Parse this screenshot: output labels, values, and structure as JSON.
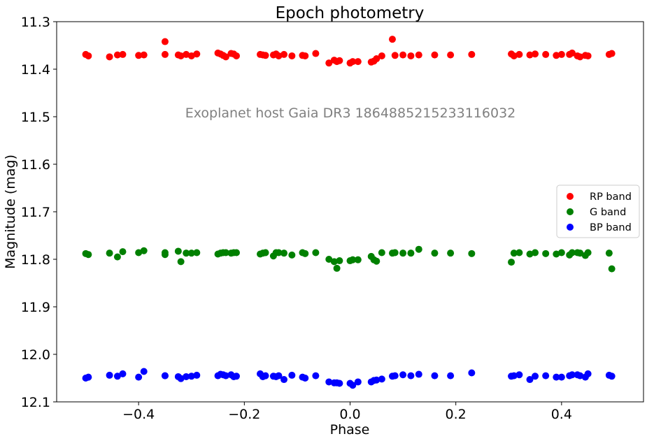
{
  "chart_data": {
    "type": "scatter",
    "title": "Epoch photometry",
    "xlabel": "Phase",
    "ylabel": "Magnitude (mag)",
    "xlim": [
      -0.555,
      0.555
    ],
    "ylim": [
      12.1,
      11.3
    ],
    "y_inverted": true,
    "xticks": [
      "−0.4",
      "−0.2",
      "0.0",
      "0.2",
      "0.4"
    ],
    "xtick_values": [
      -0.4,
      -0.2,
      0.0,
      0.2,
      0.4
    ],
    "yticks": [
      "11.3",
      "11.4",
      "11.5",
      "11.6",
      "11.7",
      "11.8",
      "11.9",
      "12.0",
      "12.1"
    ],
    "ytick_values": [
      11.3,
      11.4,
      11.5,
      11.6,
      11.7,
      11.8,
      11.9,
      12.0,
      12.1
    ],
    "grid": false,
    "legend_position": "center-right",
    "annotation": {
      "text": "Exoplanet host Gaia DR3 1864885215233116032",
      "color": "#808080"
    },
    "x": [
      -0.5,
      -0.495,
      -0.455,
      -0.44,
      -0.43,
      -0.4,
      -0.39,
      -0.35,
      -0.35,
      -0.325,
      -0.32,
      -0.31,
      -0.3,
      -0.29,
      -0.25,
      -0.245,
      -0.24,
      -0.235,
      -0.225,
      -0.22,
      -0.215,
      -0.17,
      -0.165,
      -0.16,
      -0.145,
      -0.14,
      -0.135,
      -0.125,
      -0.11,
      -0.09,
      -0.085,
      -0.065,
      -0.04,
      -0.03,
      -0.025,
      -0.02,
      0.0,
      0.005,
      0.015,
      0.04,
      0.045,
      0.05,
      0.06,
      0.08,
      0.085,
      0.1,
      0.115,
      0.13,
      0.16,
      0.19,
      0.23,
      0.305,
      0.31,
      0.32,
      0.34,
      0.35,
      0.37,
      0.39,
      0.4,
      0.415,
      0.42,
      0.43,
      0.435,
      0.445,
      0.45,
      0.49,
      0.495
    ],
    "series": [
      {
        "name": "RP band",
        "color": "#ff0000",
        "values": [
          11.369,
          11.372,
          11.374,
          11.37,
          11.369,
          11.371,
          11.37,
          11.342,
          11.369,
          11.37,
          11.372,
          11.369,
          11.372,
          11.368,
          11.366,
          11.368,
          11.371,
          11.374,
          11.367,
          11.368,
          11.372,
          11.369,
          11.37,
          11.371,
          11.37,
          11.368,
          11.372,
          11.369,
          11.372,
          11.371,
          11.372,
          11.367,
          11.387,
          11.381,
          11.384,
          11.382,
          11.387,
          11.384,
          11.384,
          11.385,
          11.383,
          11.378,
          11.372,
          11.337,
          11.371,
          11.37,
          11.372,
          11.37,
          11.37,
          11.37,
          11.369,
          11.368,
          11.372,
          11.369,
          11.37,
          11.368,
          11.369,
          11.371,
          11.369,
          11.369,
          11.366,
          11.372,
          11.374,
          11.371,
          11.372,
          11.369,
          11.367
        ]
      },
      {
        "name": "G band",
        "color": "#008000",
        "values": [
          11.788,
          11.79,
          11.787,
          11.795,
          11.784,
          11.786,
          11.782,
          11.786,
          11.79,
          11.783,
          11.805,
          11.787,
          11.787,
          11.786,
          11.789,
          11.787,
          11.786,
          11.786,
          11.787,
          11.786,
          11.786,
          11.789,
          11.787,
          11.786,
          11.793,
          11.786,
          11.786,
          11.787,
          11.791,
          11.786,
          11.788,
          11.786,
          11.8,
          11.805,
          11.819,
          11.803,
          11.803,
          11.801,
          11.801,
          11.794,
          11.801,
          11.804,
          11.786,
          11.787,
          11.786,
          11.787,
          11.787,
          11.779,
          11.787,
          11.787,
          11.788,
          11.806,
          11.787,
          11.786,
          11.789,
          11.786,
          11.788,
          11.789,
          11.786,
          11.791,
          11.786,
          11.786,
          11.787,
          11.792,
          11.786,
          11.787,
          11.82
        ]
      },
      {
        "name": "BP band",
        "color": "#0000ff",
        "values": [
          12.05,
          12.048,
          12.044,
          12.046,
          12.041,
          12.048,
          12.036,
          12.045,
          12.045,
          12.047,
          12.051,
          12.047,
          12.046,
          12.044,
          12.045,
          12.042,
          12.043,
          12.045,
          12.043,
          12.047,
          12.046,
          12.041,
          12.047,
          12.045,
          12.046,
          12.047,
          12.045,
          12.053,
          12.044,
          12.048,
          12.05,
          12.045,
          12.058,
          12.06,
          12.06,
          12.061,
          12.061,
          12.065,
          12.058,
          12.058,
          12.055,
          12.054,
          12.052,
          12.046,
          12.045,
          12.043,
          12.045,
          12.042,
          12.045,
          12.045,
          12.039,
          12.046,
          12.045,
          12.043,
          12.053,
          12.046,
          12.045,
          12.048,
          12.048,
          12.045,
          12.043,
          12.043,
          12.045,
          12.048,
          12.041,
          12.044,
          12.046
        ]
      }
    ]
  }
}
